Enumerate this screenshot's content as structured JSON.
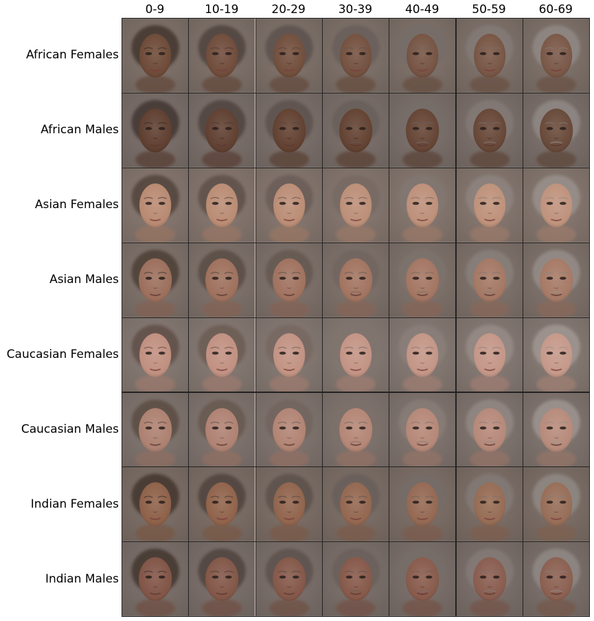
{
  "columns": [
    "0-9",
    "10-19",
    "20-29",
    "30-39",
    "40-49",
    "50-59",
    "60-69"
  ],
  "rows": [
    {
      "label": "African Females",
      "skin": "#6e4a38",
      "hair": "#3a2d28",
      "bg": "#7d7068",
      "female": true
    },
    {
      "label": "African Males",
      "skin": "#634232",
      "hair": "#3a2e29",
      "bg": "#7a6e68",
      "female": false
    },
    {
      "label": "Asian Females",
      "skin": "#b98a72",
      "hair": "#4b3c35",
      "bg": "#85766e",
      "female": true
    },
    {
      "label": "Asian Males",
      "skin": "#a27460",
      "hair": "#45372f",
      "bg": "#7e716a",
      "female": false
    },
    {
      "label": "Caucasian Females",
      "skin": "#c09080",
      "hair": "#5b4a42",
      "bg": "#857872",
      "female": true
    },
    {
      "label": "Caucasian Males",
      "skin": "#b48676",
      "hair": "#56463e",
      "bg": "#7f736d",
      "female": false
    },
    {
      "label": "Indian Females",
      "skin": "#8e6149",
      "hair": "#3a2d27",
      "bg": "#7b6d65",
      "female": true
    },
    {
      "label": "Indian Males",
      "skin": "#86594a",
      "hair": "#3b2e28",
      "bg": "#7a6e68",
      "female": false
    }
  ]
}
